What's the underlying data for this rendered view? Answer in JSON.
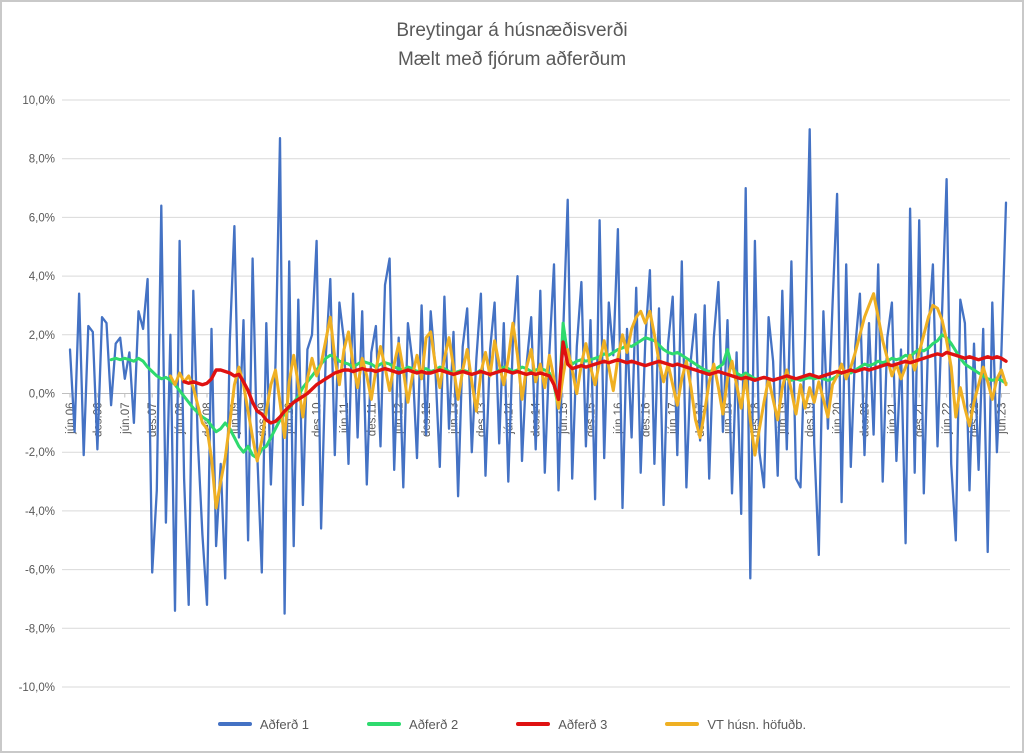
{
  "chart": {
    "title_line1": "Breytingar á húsnæðisverði",
    "title_line2": "Mælt með fjórum aðferðum",
    "text_color": "#595959",
    "grid_color": "#d9d9d9",
    "axis_color": "#bfbfbf"
  },
  "chart_data": {
    "type": "line",
    "title": "Breytingar á húsnæðisverði",
    "subtitle": "Mælt með fjórum aðferðum",
    "sampling": "monthly",
    "x_start_month": "jún.06",
    "x_end_month": "júl.23",
    "x_tick_every_months": 6,
    "x_tick_labels": [
      "jún.06",
      "des.06",
      "jún.07",
      "des.07",
      "jún.08",
      "des.08",
      "jún.09",
      "des.09",
      "jún.10",
      "des.10",
      "jún.11",
      "des.11",
      "jún.12",
      "des.12",
      "jún.13",
      "des.13",
      "jún.14",
      "des.14",
      "jún.15",
      "des.15",
      "jún.16",
      "des.16",
      "jún.17",
      "des.17",
      "jún.18",
      "des.18",
      "jún.19",
      "des.19",
      "jún.20",
      "des.20",
      "jún.21",
      "des.21",
      "jún.22",
      "des.22",
      "jún.23"
    ],
    "ylim": [
      -10,
      10
    ],
    "ytick_step": 2,
    "y_tick_labels": [
      "10,0%",
      "8,0%",
      "6,0%",
      "4,0%",
      "2,0%",
      "0,0%",
      "-2,0%",
      "-4,0%",
      "-6,0%",
      "-8,0%",
      "-10,0%"
    ],
    "grid": true,
    "legend_position": "bottom",
    "series": [
      {
        "name": "Aðferð 1",
        "color": "#4472C4",
        "start_month_index": 0,
        "values": [
          1.5,
          -1.3,
          3.4,
          -2.1,
          2.3,
          2.1,
          -1.9,
          2.6,
          2.4,
          -0.4,
          1.7,
          1.9,
          0.5,
          1.4,
          -1.0,
          2.8,
          2.2,
          3.9,
          -6.1,
          -3.3,
          6.4,
          -4.4,
          2.0,
          -7.4,
          5.2,
          -2.9,
          -7.2,
          3.5,
          -1.6,
          -4.8,
          -7.2,
          2.2,
          -5.2,
          -2.4,
          -6.3,
          1.8,
          5.7,
          -1.5,
          2.5,
          -5.0,
          4.6,
          -2.0,
          -6.1,
          2.4,
          -3.1,
          1.0,
          8.7,
          -7.5,
          4.5,
          -5.2,
          3.2,
          -3.8,
          1.5,
          2.0,
          5.2,
          -4.6,
          1.2,
          3.9,
          -2.1,
          3.1,
          1.8,
          -2.4,
          3.4,
          -1.5,
          2.8,
          -3.1,
          1.4,
          2.3,
          -1.8,
          3.7,
          4.6,
          -2.6,
          1.9,
          -3.2,
          2.4,
          1.1,
          -2.2,
          3.0,
          -1.4,
          2.8,
          0.9,
          -2.5,
          3.3,
          -1.2,
          2.1,
          -3.5,
          1.6,
          2.9,
          -2.0,
          1.2,
          3.4,
          -2.8,
          1.5,
          3.1,
          -1.7,
          2.4,
          -3.0,
          1.8,
          4.0,
          -2.3,
          1.0,
          2.6,
          -1.9,
          3.5,
          -2.7,
          1.4,
          4.4,
          -3.3,
          2.0,
          6.6,
          -2.9,
          1.6,
          3.8,
          -1.8,
          2.5,
          -3.6,
          5.9,
          -2.2,
          3.1,
          1.3,
          5.6,
          -3.9,
          2.2,
          -1.5,
          3.6,
          -2.7,
          1.8,
          4.2,
          -2.4,
          2.9,
          -3.8,
          1.7,
          3.3,
          -2.1,
          4.5,
          -3.2,
          1.2,
          2.7,
          -1.6,
          3.0,
          -2.9,
          1.9,
          3.8,
          -1.3,
          2.5,
          -3.4,
          1.4,
          -4.1,
          7.0,
          -6.3,
          5.2,
          -2.0,
          -3.2,
          2.6,
          1.1,
          -2.8,
          3.5,
          -1.9,
          4.5,
          -2.9,
          -3.2,
          2.0,
          9.0,
          -1.7,
          -5.5,
          2.8,
          -1.2,
          3.0,
          6.8,
          -3.7,
          4.4,
          -2.5,
          1.6,
          3.4,
          -2.1,
          2.4,
          -1.4,
          4.4,
          -3.0,
          1.9,
          3.1,
          -2.3,
          1.5,
          -5.1,
          6.3,
          -2.7,
          5.9,
          -3.4,
          2.1,
          4.4,
          -1.8,
          2.8,
          7.3,
          -2.4,
          -5.0,
          3.2,
          2.4,
          -3.3,
          1.7,
          -2.6,
          2.2,
          -5.4,
          3.1,
          -2.0,
          1.4,
          6.5
        ]
      },
      {
        "name": "Aðferð 2",
        "color": "#2EDA6E",
        "start_month_index": 9,
        "values": [
          1.15,
          1.2,
          1.15,
          1.2,
          1.15,
          1.1,
          1.2,
          1.1,
          0.9,
          0.75,
          0.6,
          0.5,
          0.55,
          0.45,
          0.3,
          0.1,
          -0.1,
          -0.3,
          -0.5,
          -0.65,
          -0.8,
          -0.9,
          -1.1,
          -1.3,
          -1.2,
          -1.0,
          -1.2,
          -1.5,
          -1.8,
          -2.0,
          -1.8,
          -2.1,
          -2.2,
          -1.9,
          -1.8,
          -1.5,
          -1.2,
          -0.9,
          -0.7,
          -0.5,
          -0.3,
          -0.1,
          0.2,
          0.4,
          0.6,
          0.8,
          1.0,
          1.2,
          1.3,
          1.25,
          1.1,
          1.05,
          1.0,
          0.9,
          1.0,
          1.1,
          1.05,
          1.0,
          0.9,
          1.0,
          1.05,
          1.0,
          0.9,
          0.85,
          0.8,
          0.9,
          0.85,
          0.75,
          0.8,
          0.85,
          0.75,
          0.8,
          0.9,
          0.85,
          0.75,
          0.7,
          0.75,
          0.8,
          0.75,
          0.65,
          0.7,
          0.8,
          0.7,
          0.65,
          0.7,
          0.8,
          0.9,
          0.85,
          0.75,
          0.8,
          0.9,
          0.85,
          0.75,
          0.8,
          0.85,
          0.8,
          0.7,
          0.3,
          -0.5,
          2.4,
          1.3,
          1.0,
          1.1,
          1.15,
          1.1,
          1.15,
          1.2,
          1.25,
          1.35,
          1.3,
          1.4,
          1.5,
          1.55,
          1.65,
          1.6,
          1.7,
          1.8,
          1.9,
          1.85,
          1.8,
          1.65,
          1.5,
          1.4,
          1.35,
          1.4,
          1.3,
          1.2,
          1.1,
          1.0,
          0.9,
          0.8,
          0.75,
          0.8,
          0.9,
          1.0,
          1.5,
          0.9,
          0.7,
          0.6,
          0.7,
          0.6,
          0.5,
          0.5,
          0.55,
          0.5,
          0.45,
          0.5,
          0.55,
          0.5,
          0.45,
          0.5,
          0.45,
          0.5,
          0.55,
          0.5,
          0.55,
          0.5,
          0.45,
          0.5,
          0.6,
          0.7,
          0.75,
          0.7,
          0.8,
          0.9,
          1.0,
          0.95,
          1.0,
          1.1,
          1.05,
          1.1,
          1.2,
          1.15,
          1.2,
          1.3,
          1.25,
          1.4,
          1.5,
          1.45,
          1.55,
          1.7,
          1.8,
          2.0,
          1.9,
          1.7,
          1.45,
          1.2,
          1.0,
          0.9,
          0.8,
          0.7,
          0.6,
          0.5,
          0.45,
          0.5,
          0.45,
          0.35
        ]
      },
      {
        "name": "Aðferð 3",
        "color": "#DF1111",
        "start_month_index": 25,
        "values": [
          0.4,
          0.35,
          0.4,
          0.35,
          0.3,
          0.35,
          0.5,
          0.8,
          0.8,
          0.75,
          0.7,
          0.6,
          0.65,
          0.4,
          0.1,
          -0.3,
          -0.6,
          -0.7,
          -0.9,
          -1.0,
          -0.95,
          -0.8,
          -0.6,
          -0.45,
          -0.3,
          -0.2,
          -0.1,
          0.0,
          0.15,
          0.3,
          0.4,
          0.5,
          0.6,
          0.7,
          0.75,
          0.8,
          0.8,
          0.75,
          0.8,
          0.85,
          0.8,
          0.8,
          0.75,
          0.8,
          0.85,
          0.8,
          0.75,
          0.7,
          0.75,
          0.8,
          0.75,
          0.7,
          0.75,
          0.7,
          0.7,
          0.75,
          0.8,
          0.75,
          0.7,
          0.65,
          0.7,
          0.75,
          0.7,
          0.65,
          0.7,
          0.75,
          0.7,
          0.65,
          0.7,
          0.75,
          0.8,
          0.75,
          0.7,
          0.75,
          0.7,
          0.65,
          0.7,
          0.65,
          0.7,
          0.65,
          0.6,
          0.3,
          -0.2,
          1.75,
          1.0,
          0.85,
          0.9,
          0.95,
          0.9,
          0.95,
          1.0,
          1.05,
          1.1,
          1.05,
          1.1,
          1.15,
          1.1,
          1.05,
          1.1,
          1.05,
          1.0,
          0.95,
          1.0,
          1.05,
          1.1,
          1.05,
          1.0,
          0.95,
          1.0,
          0.95,
          0.9,
          0.85,
          0.8,
          0.75,
          0.7,
          0.65,
          0.7,
          0.75,
          0.7,
          0.65,
          0.6,
          0.55,
          0.5,
          0.55,
          0.5,
          0.45,
          0.5,
          0.55,
          0.5,
          0.45,
          0.5,
          0.55,
          0.6,
          0.55,
          0.5,
          0.55,
          0.6,
          0.65,
          0.6,
          0.55,
          0.6,
          0.65,
          0.7,
          0.75,
          0.7,
          0.75,
          0.8,
          0.75,
          0.8,
          0.85,
          0.8,
          0.85,
          0.9,
          0.95,
          1.0,
          0.95,
          1.0,
          1.05,
          1.1,
          1.05,
          1.1,
          1.15,
          1.2,
          1.25,
          1.3,
          1.35,
          1.3,
          1.4,
          1.35,
          1.3,
          1.25,
          1.2,
          1.25,
          1.2,
          1.15,
          1.2,
          1.25,
          1.2,
          1.25,
          1.2,
          1.1
        ]
      },
      {
        "name": "VT húsn. höfuðb.",
        "color": "#EFB023",
        "start_month_index": 22,
        "values": [
          0.6,
          0.3,
          0.7,
          0.4,
          0.6,
          0.2,
          -0.4,
          -1.0,
          -1.2,
          -2.2,
          -3.9,
          -3.0,
          -2.2,
          -1.0,
          0.3,
          0.9,
          0.3,
          -0.6,
          -1.5,
          -2.3,
          -1.6,
          -0.6,
          0.3,
          0.8,
          -0.3,
          -1.5,
          0.4,
          1.3,
          0.3,
          -0.8,
          0.5,
          1.2,
          0.6,
          1.0,
          1.8,
          2.6,
          1.2,
          0.3,
          1.5,
          2.1,
          1.0,
          0.2,
          1.2,
          0.6,
          -0.2,
          0.8,
          1.6,
          0.9,
          0.1,
          1.0,
          1.7,
          0.8,
          -0.3,
          0.6,
          1.3,
          0.5,
          1.9,
          2.1,
          1.0,
          0.2,
          1.2,
          1.9,
          0.9,
          -0.2,
          0.8,
          1.5,
          0.4,
          -0.6,
          0.7,
          1.4,
          0.6,
          1.8,
          1.0,
          0.3,
          1.2,
          2.4,
          1.3,
          -0.2,
          0.9,
          1.5,
          0.4,
          1.0,
          0.2,
          1.3,
          0.5,
          -0.5,
          0.6,
          1.5,
          0.8,
          0.0,
          1.0,
          1.7,
          0.9,
          0.3,
          1.1,
          1.8,
          0.9,
          0.1,
          1.2,
          2.0,
          1.4,
          2.2,
          2.6,
          2.8,
          2.4,
          2.8,
          2.0,
          1.1,
          0.4,
          1.0,
          0.3,
          -0.4,
          0.5,
          1.1,
          0.2,
          -0.9,
          -1.5,
          -0.6,
          0.4,
          1.0,
          0.2,
          -0.7,
          0.5,
          1.1,
          0.3,
          -0.5,
          0.6,
          -0.9,
          -2.1,
          -1.2,
          -0.3,
          0.5,
          -0.2,
          -0.9,
          0.2,
          0.8,
          0.1,
          -0.7,
          0.3,
          -0.5,
          0.2,
          -0.3,
          0.4,
          -0.2,
          -0.8,
          0.3,
          0.6,
          1.0,
          0.5,
          0.9,
          1.4,
          2.0,
          2.6,
          3.0,
          3.4,
          2.6,
          1.8,
          1.2,
          0.6,
          1.0,
          0.5,
          0.9,
          1.3,
          0.8,
          1.4,
          2.0,
          2.6,
          3.0,
          2.9,
          2.5,
          1.8,
          0.9,
          -0.8,
          0.2,
          -0.5,
          -1.1,
          -0.3,
          0.3,
          0.9,
          0.4,
          -0.2,
          0.5,
          0.8,
          0.3
        ]
      }
    ]
  }
}
